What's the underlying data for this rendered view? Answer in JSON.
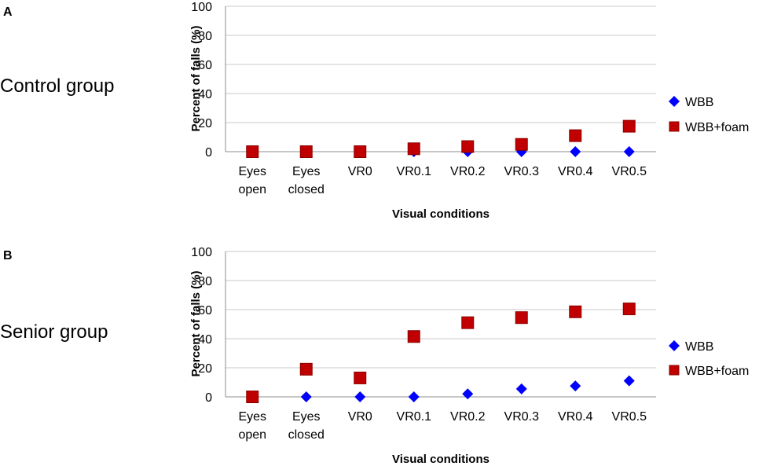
{
  "chart_data": [
    {
      "type": "scatter",
      "panel": "A",
      "group_label": "Control group",
      "ylabel": "Percent of falls (%)",
      "xlabel": "Visual conditions",
      "ylim": [
        0,
        100
      ],
      "yticks": [
        "0",
        "20",
        "40",
        "60",
        "80",
        "100"
      ],
      "categories": [
        [
          "Eyes",
          "open"
        ],
        [
          "Eyes",
          "closed"
        ],
        [
          "VR0"
        ],
        [
          "VR0.1"
        ],
        [
          "VR0.2"
        ],
        [
          "VR0.3"
        ],
        [
          "VR0.4"
        ],
        [
          "VR0.5"
        ]
      ],
      "series": [
        {
          "name": "WBB",
          "marker": "diamond",
          "color": "#0000ff",
          "values": [
            null,
            null,
            null,
            0,
            0,
            0,
            0,
            0
          ]
        },
        {
          "name": "WBB+foam",
          "marker": "square",
          "color": "#c00000",
          "values": [
            0,
            0,
            0,
            2,
            3.5,
            5,
            11,
            17.5
          ]
        }
      ]
    },
    {
      "type": "scatter",
      "panel": "B",
      "group_label": "Senior group",
      "ylabel": "Percent of falls (%)",
      "xlabel": "Visual conditions",
      "ylim": [
        0,
        100
      ],
      "yticks": [
        "0",
        "20",
        "40",
        "60",
        "80",
        "100"
      ],
      "categories": [
        [
          "Eyes",
          "open"
        ],
        [
          "Eyes",
          "closed"
        ],
        [
          "VR0"
        ],
        [
          "VR0.1"
        ],
        [
          "VR0.2"
        ],
        [
          "VR0.3"
        ],
        [
          "VR0.4"
        ],
        [
          "VR0.5"
        ]
      ],
      "series": [
        {
          "name": "WBB",
          "marker": "diamond",
          "color": "#0000ff",
          "values": [
            null,
            0,
            0,
            0,
            2,
            5.5,
            7.5,
            11
          ]
        },
        {
          "name": "WBB+foam",
          "marker": "square",
          "color": "#c00000",
          "values": [
            0,
            19,
            13,
            41.5,
            51,
            54.5,
            58.5,
            60.5
          ]
        }
      ]
    }
  ]
}
